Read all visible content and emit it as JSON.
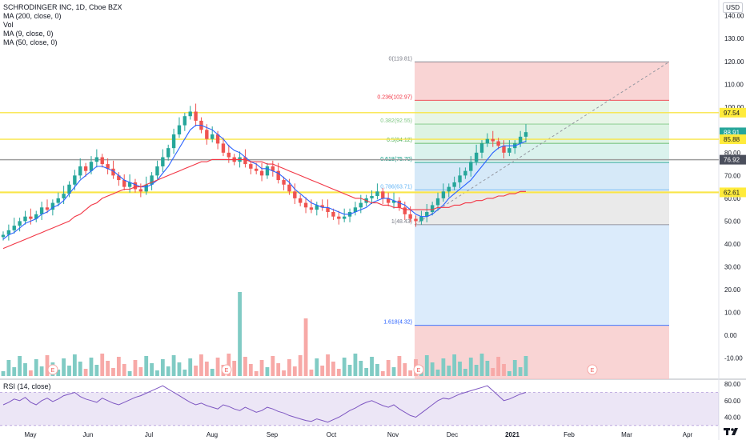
{
  "header": {
    "title": "SCHRODINGER INC, 1D, Cboe BZX",
    "indicators": [
      "MA (200, close, 0)",
      "Vol",
      "MA (9, close, 0)",
      "MA (50, close, 0)"
    ],
    "rsi_label": "RSI (14, close)",
    "currency": "USD"
  },
  "colors": {
    "up": "#26a69a",
    "down": "#ef5350",
    "ma9": "#2962ff",
    "ma50": "#f23645",
    "yellow": "#ffeb3b",
    "rsi": "#7e57c2"
  },
  "chart_data": [
    {
      "type": "candlestick",
      "title": "SCHRODINGER INC, 1D, Cboe BZX",
      "x_ticks": [
        "May",
        "Jun",
        "Jul",
        "Aug",
        "Sep",
        "Oct",
        "Nov",
        "Dec",
        "2021",
        "Feb",
        "Mar",
        "Apr"
      ],
      "y_ticks": [
        -10,
        0,
        10,
        20,
        30,
        40,
        50,
        60,
        70,
        80,
        90,
        100,
        110,
        120,
        130,
        140
      ],
      "ylim": [
        -15,
        150
      ],
      "price_labels": [
        {
          "value": 97.54,
          "text": "97.54",
          "color": "yellow"
        },
        {
          "value": 88.91,
          "text": "88.91",
          "color": "up"
        },
        {
          "value": 85.88,
          "text": "85.88",
          "color": "yellow"
        },
        {
          "value": 76.92,
          "text": "76.92",
          "color": "gray"
        },
        {
          "value": 62.61,
          "text": "62.61",
          "color": "yellow"
        }
      ],
      "horizontal_lines": [
        97.54,
        85.88,
        76.92,
        62.61
      ],
      "fib_levels": [
        {
          "ratio": "0",
          "value": 119.81,
          "label": "0(119.81)"
        },
        {
          "ratio": "0.236",
          "value": 102.97,
          "label": "0.236(102.97)"
        },
        {
          "ratio": "0.382",
          "value": 92.55,
          "label": "0.382(92.55)"
        },
        {
          "ratio": "0.5",
          "value": 84.12,
          "label": "0.5(84.12)"
        },
        {
          "ratio": "0.618",
          "value": 75.7,
          "label": "0.618(75.70)"
        },
        {
          "ratio": "0.786",
          "value": 63.71,
          "label": "0.786(63.71)"
        },
        {
          "ratio": "1",
          "value": 48.43,
          "label": "1(48.43)"
        },
        {
          "ratio": "1.618",
          "value": 4.32,
          "label": "1.618(4.32)"
        }
      ],
      "series": [
        {
          "name": "Price",
          "close": [
            44,
            46,
            48,
            50,
            52,
            51,
            53,
            56,
            55,
            58,
            60,
            62,
            66,
            70,
            74,
            72,
            76,
            78,
            75,
            73,
            70,
            68,
            65,
            67,
            64,
            63,
            66,
            70,
            74,
            78,
            82,
            88,
            92,
            96,
            98,
            94,
            90,
            86,
            88,
            84,
            80,
            78,
            76,
            78,
            75,
            73,
            72,
            70,
            74,
            72,
            68,
            66,
            63,
            60,
            58,
            56,
            55,
            57,
            56,
            54,
            52,
            51,
            52,
            54,
            56,
            58,
            60,
            61,
            63,
            60,
            58,
            59,
            56,
            53,
            51,
            50,
            52,
            54,
            57,
            60,
            63,
            65,
            67,
            70,
            72,
            76,
            80,
            84,
            86,
            85,
            83,
            80,
            82,
            84,
            87,
            89
          ]
        },
        {
          "name": "MA (9, close, 0)",
          "values": [
            42,
            44,
            45,
            47,
            49,
            50,
            51,
            53,
            54,
            56,
            57,
            59,
            62,
            65,
            68,
            70,
            72,
            74,
            74,
            73,
            72,
            70,
            68,
            67,
            66,
            65,
            65,
            66,
            68,
            71,
            74,
            78,
            82,
            86,
            90,
            92,
            92,
            91,
            90,
            88,
            86,
            83,
            81,
            80,
            78,
            76,
            75,
            73,
            73,
            72,
            71,
            69,
            67,
            64,
            62,
            60,
            58,
            57,
            56,
            56,
            55,
            54,
            53,
            53,
            54,
            55,
            56,
            58,
            59,
            60,
            60,
            59,
            58,
            57,
            55,
            53,
            52,
            52,
            53,
            55,
            57,
            60,
            62,
            64,
            66,
            68,
            71,
            74,
            77,
            80,
            82,
            83,
            83,
            83,
            84,
            85
          ]
        },
        {
          "name": "MA (50, close, 0)",
          "values": [
            38,
            39,
            40,
            41,
            42,
            43,
            44,
            45,
            46,
            47,
            48,
            49,
            50,
            52,
            53,
            55,
            57,
            58,
            60,
            61,
            62,
            63,
            64,
            64,
            65,
            65,
            66,
            67,
            68,
            69,
            70,
            71,
            72,
            73,
            74,
            75,
            76,
            76,
            77,
            77,
            77,
            77,
            77,
            77,
            77,
            76,
            76,
            76,
            75,
            75,
            74,
            73,
            72,
            71,
            70,
            69,
            68,
            67,
            66,
            65,
            64,
            63,
            62,
            61,
            60,
            60,
            59,
            58,
            58,
            57,
            57,
            56,
            56,
            55,
            55,
            55,
            55,
            55,
            55,
            56,
            56,
            56,
            57,
            57,
            58,
            58,
            59,
            59,
            60,
            60,
            61,
            61,
            62,
            62,
            63,
            63
          ]
        }
      ]
    },
    {
      "type": "line",
      "title": "RSI (14, close)",
      "y_ticks": [
        40,
        60,
        80
      ],
      "ylim": [
        25,
        85
      ],
      "bands": [
        30,
        70
      ],
      "series": [
        {
          "name": "RSI (14, close)",
          "values": [
            55,
            58,
            62,
            60,
            64,
            58,
            55,
            60,
            63,
            59,
            62,
            66,
            68,
            70,
            65,
            62,
            60,
            58,
            63,
            60,
            57,
            55,
            58,
            61,
            64,
            66,
            69,
            72,
            75,
            78,
            74,
            70,
            66,
            62,
            58,
            55,
            57,
            54,
            52,
            50,
            55,
            53,
            50,
            48,
            52,
            49,
            46,
            48,
            52,
            50,
            47,
            45,
            42,
            40,
            38,
            36,
            35,
            38,
            36,
            34,
            37,
            40,
            44,
            48,
            51,
            55,
            58,
            60,
            57,
            54,
            52,
            55,
            50,
            46,
            42,
            40,
            45,
            50,
            55,
            60,
            63,
            62,
            65,
            68,
            70,
            72,
            74,
            76,
            78,
            72,
            66,
            60,
            62,
            65,
            68,
            70
          ]
        }
      ]
    }
  ]
}
